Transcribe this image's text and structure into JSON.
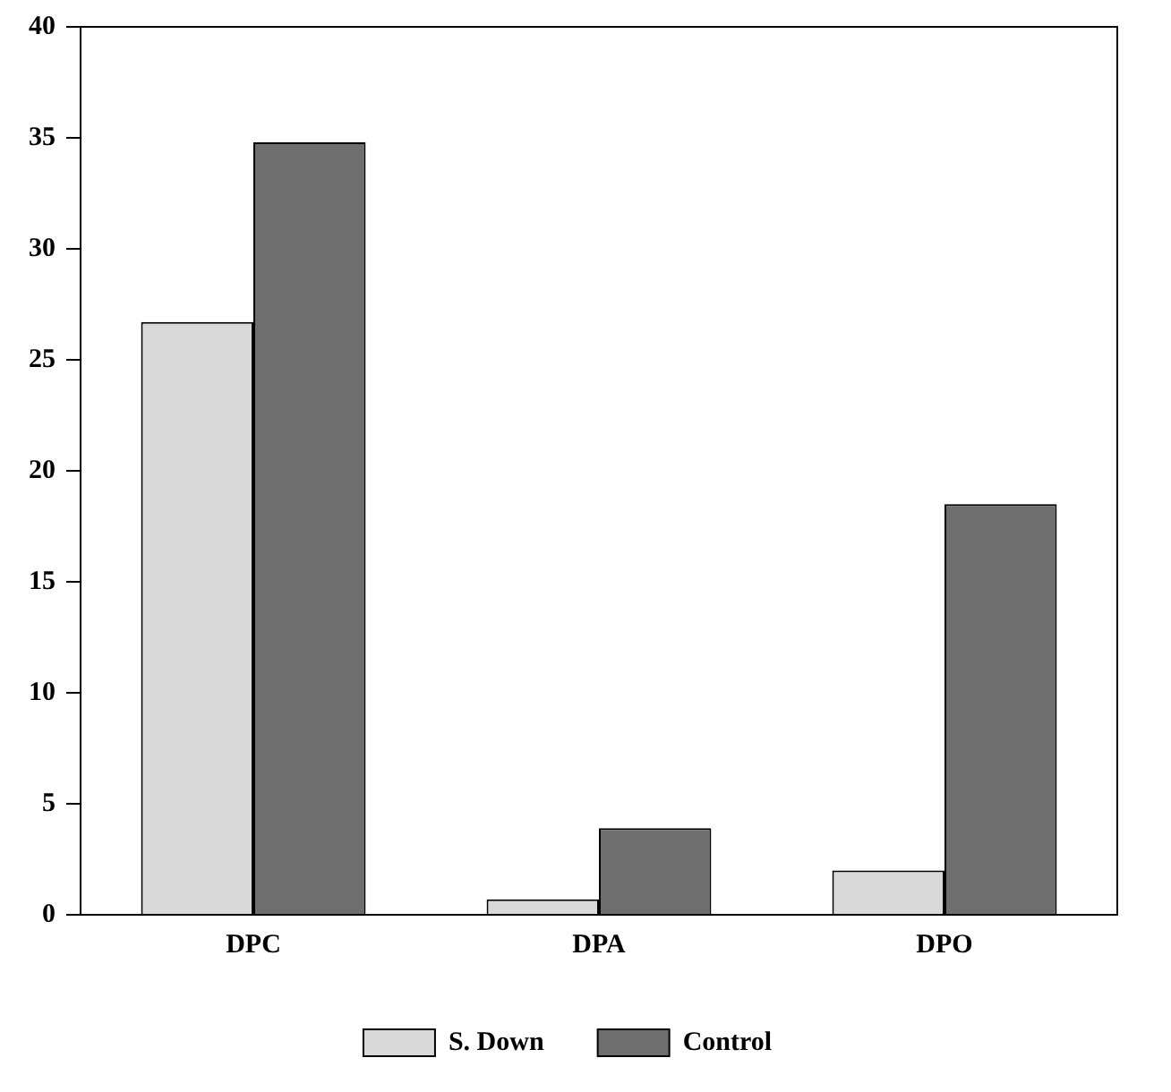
{
  "chart_data": {
    "type": "bar",
    "categories": [
      "DPC",
      "DPA",
      "DPO"
    ],
    "series": [
      {
        "name": "S. Down",
        "color": "#d9d9d9",
        "values": [
          26.7,
          0.7,
          2
        ]
      },
      {
        "name": "Control",
        "color": "#6e6e6e",
        "values": [
          34.8,
          3.9,
          18.5
        ]
      }
    ],
    "ylim": [
      0,
      40
    ],
    "yticks": [
      0,
      5,
      10,
      15,
      20,
      25,
      30,
      35,
      40
    ],
    "grid": false,
    "legend": "bottom"
  }
}
